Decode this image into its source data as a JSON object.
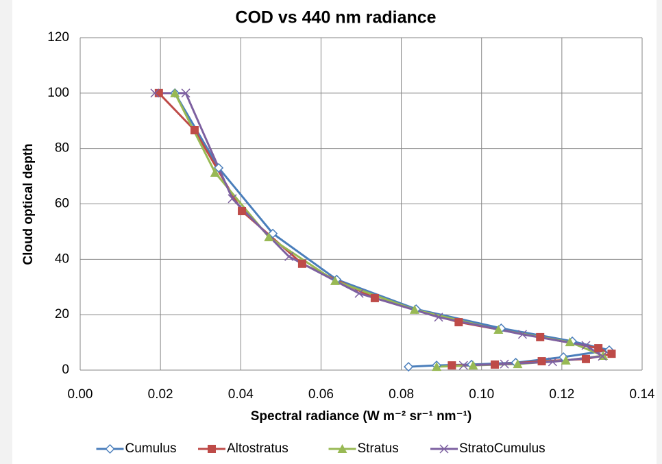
{
  "chart_data": {
    "type": "line",
    "title": "COD vs 440 nm  radiance",
    "xlabel": "Spectral  radiance (W m⁻² sr⁻¹ nm⁻¹)",
    "ylabel": "Cloud  optical depth",
    "xlim": [
      0,
      0.14
    ],
    "xticks": [
      {
        "value": 0,
        "label": "0.00"
      },
      0.02,
      0.04,
      0.06,
      0.08,
      {
        "value": 0.1,
        "label": "0.10"
      },
      0.12,
      0.14
    ],
    "ylim": [
      0,
      120
    ],
    "yticks": [
      0,
      20,
      40,
      60,
      80,
      100,
      120
    ],
    "grid": true,
    "legend": "bottom",
    "series": [
      {
        "name": "Cumulus",
        "color": "#4a7ebb",
        "marker": "diamond",
        "x": [
          0.0236,
          0.0345,
          0.048,
          0.0639,
          0.0837,
          0.1049,
          0.1226,
          0.1318,
          0.1204,
          0.1085,
          0.0975,
          0.0888,
          0.0818
        ],
        "values": [
          100,
          73,
          49.3,
          32.7,
          22,
          15.1,
          10.4,
          7.2,
          4.7,
          2.7,
          2.0,
          1.7,
          1.2
        ]
      },
      {
        "name": "Altostratus",
        "color": "#be4b48",
        "marker": "square",
        "x": [
          0.0196,
          0.0285,
          0.0403,
          0.0553,
          0.0734,
          0.0943,
          0.1146,
          0.1291,
          0.1324,
          0.126,
          0.115,
          0.1033,
          0.0926
        ],
        "values": [
          100,
          86.6,
          57.4,
          38.4,
          26,
          17.3,
          11.9,
          7.9,
          5.9,
          4,
          3.2,
          2.0,
          1.7
        ]
      },
      {
        "name": "Stratus",
        "color": "#98b954",
        "marker": "triangle",
        "x": [
          0.0236,
          0.0336,
          0.047,
          0.0635,
          0.0833,
          0.1042,
          0.122,
          0.1303,
          0.121,
          0.109,
          0.0979,
          0.0888
        ],
        "values": [
          100,
          71.3,
          48,
          32.2,
          21.8,
          14.6,
          10.1,
          5.2,
          3.5,
          2.2,
          1.7,
          1.2
        ]
      },
      {
        "name": "StratoCumulus",
        "color": "#7d60a0",
        "marker": "x",
        "x": [
          0.0186,
          0.0263,
          0.0379,
          0.052,
          0.0695,
          0.0893,
          0.1102,
          0.126,
          0.1301,
          0.1177,
          0.1057,
          0.0955
        ],
        "values": [
          100,
          100,
          61.9,
          41,
          27.7,
          19.1,
          12.9,
          8.9,
          5.0,
          3.0,
          2.2,
          1.7
        ]
      }
    ]
  }
}
